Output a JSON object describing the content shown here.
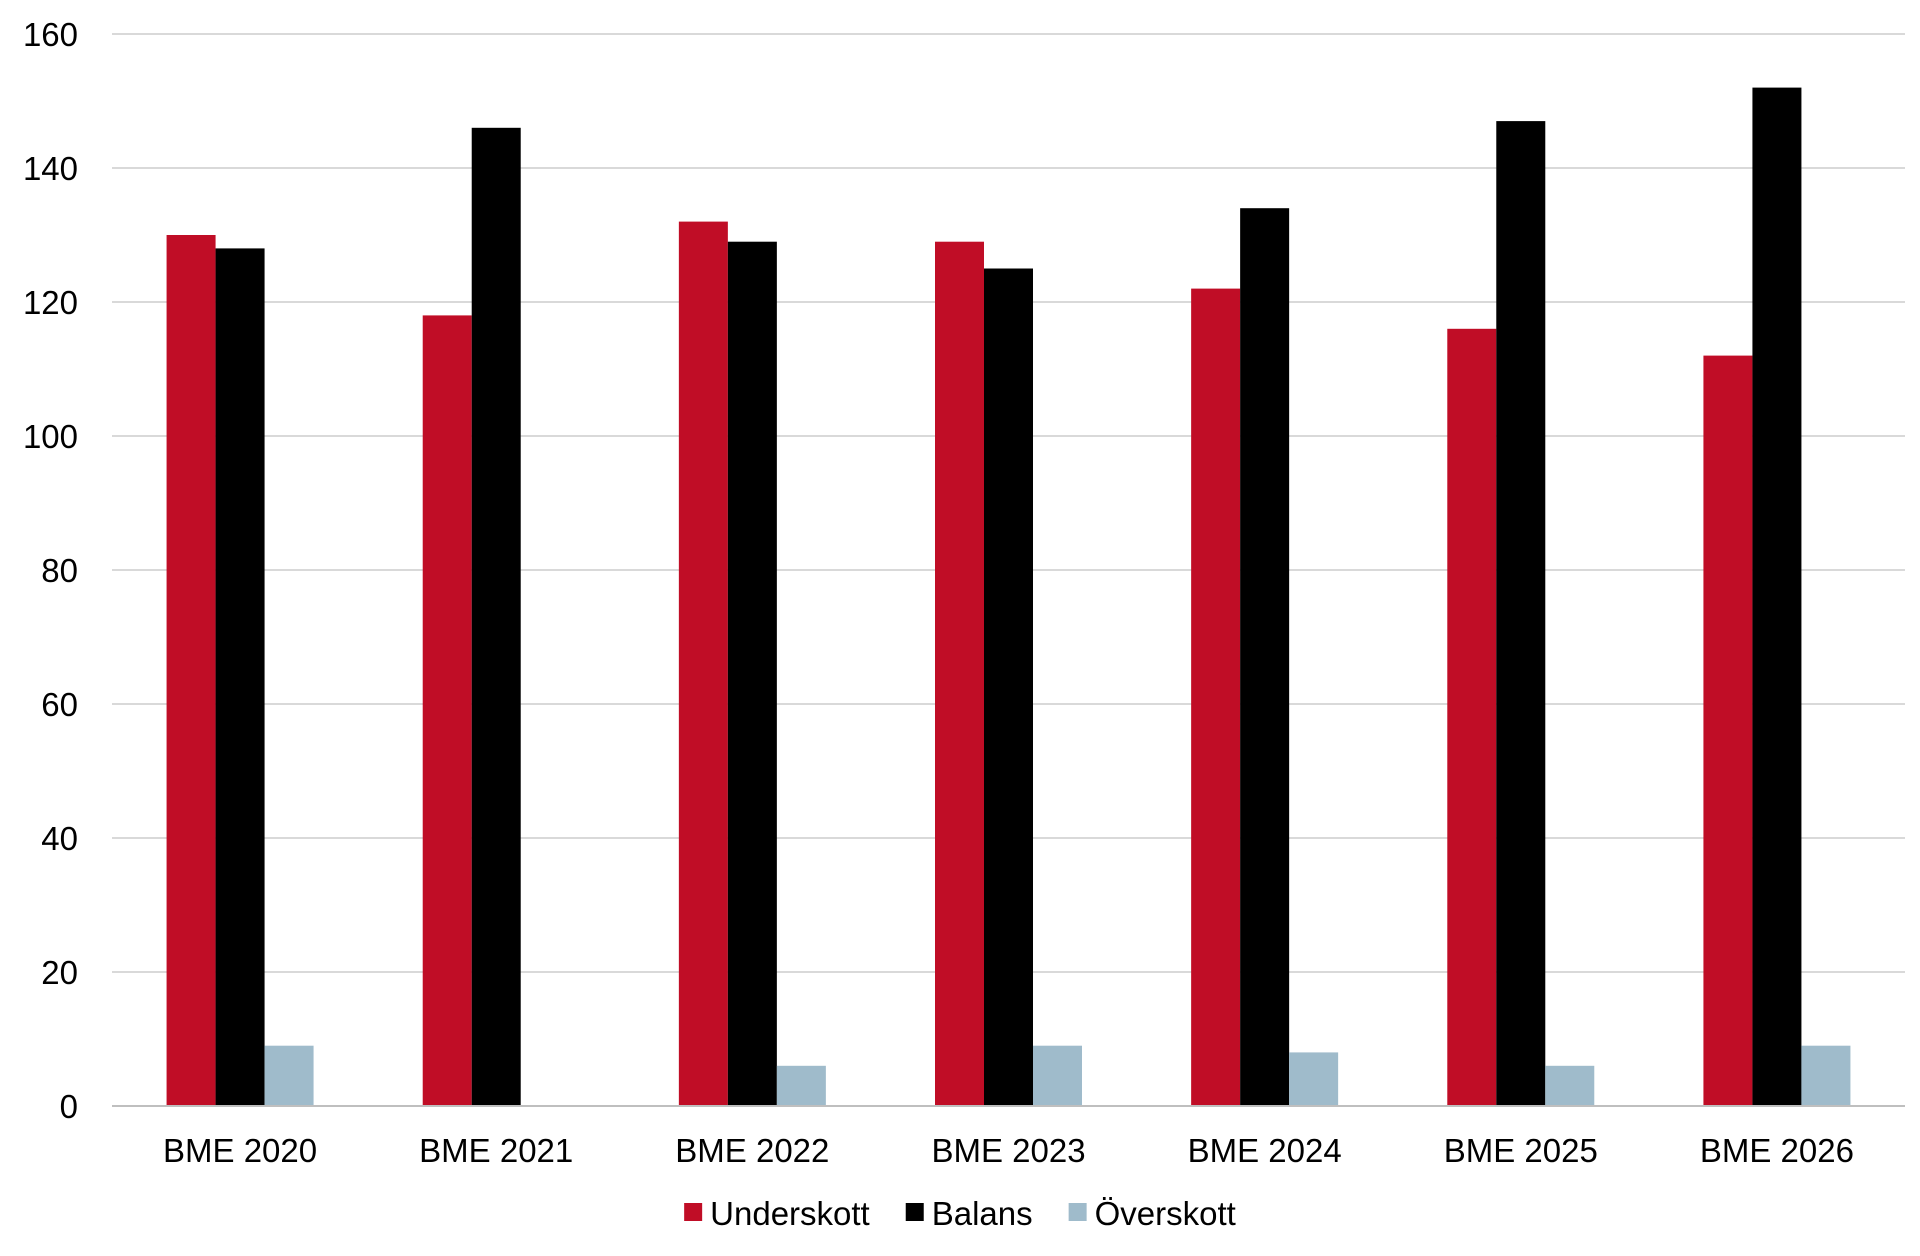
{
  "chart_data": {
    "type": "bar",
    "title": "",
    "xlabel": "",
    "ylabel": "",
    "categories": [
      "BME 2020",
      "BME 2021",
      "BME 2022",
      "BME 2023",
      "BME 2024",
      "BME 2025",
      "BME 2026"
    ],
    "series": [
      {
        "name": "Underskott",
        "color": "#c00d26",
        "values": [
          130,
          118,
          132,
          129,
          122,
          116,
          112
        ]
      },
      {
        "name": "Balans",
        "color": "#000000",
        "values": [
          128,
          146,
          129,
          125,
          134,
          147,
          152
        ]
      },
      {
        "name": "Överskott",
        "color": "#9fbbcb",
        "values": [
          9,
          0,
          6,
          9,
          8,
          6,
          9
        ]
      }
    ],
    "ylim": [
      0,
      160
    ],
    "yticks": [
      0,
      20,
      40,
      60,
      80,
      100,
      120,
      140,
      160
    ],
    "grid": true,
    "legend_position": "bottom"
  }
}
